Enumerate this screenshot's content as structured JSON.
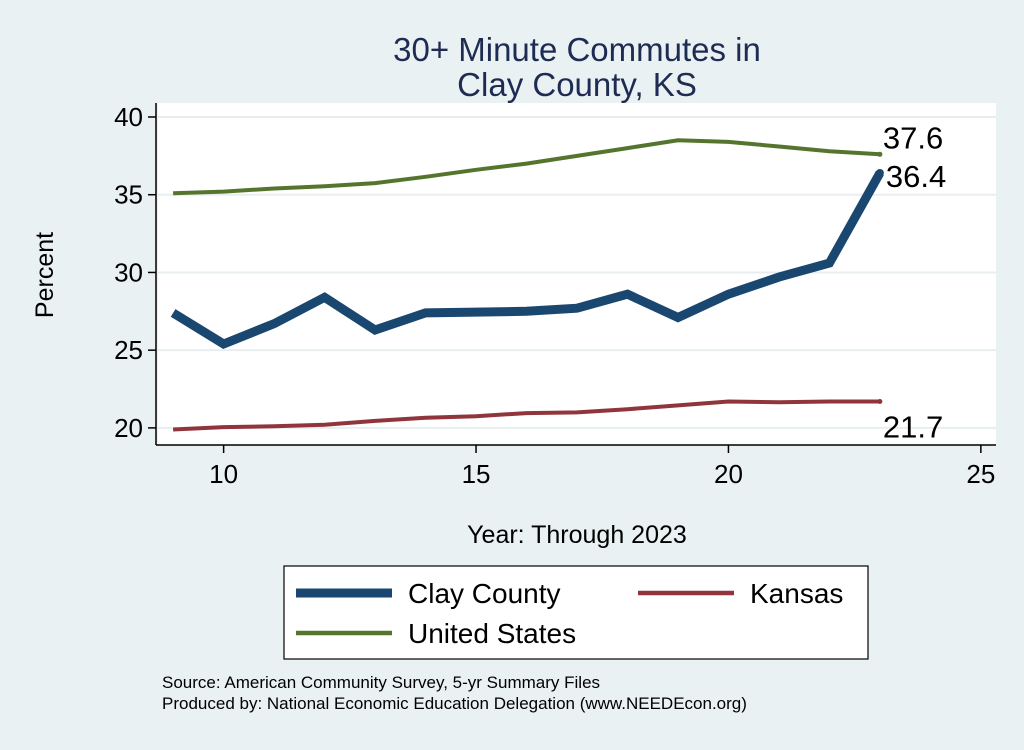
{
  "chart_data": {
    "type": "line",
    "title": [
      "30+ Minute Commutes in",
      "Clay County, KS"
    ],
    "xlabel": "Year: Through 2023",
    "ylabel": "Percent",
    "xlim": [
      8.7,
      25.3
    ],
    "ylim": [
      18.9,
      40.9
    ],
    "xticks": [
      10,
      15,
      20,
      25
    ],
    "yticks": [
      20,
      25,
      30,
      35,
      40
    ],
    "grid": "horizontal",
    "x": [
      9,
      10,
      11,
      12,
      13,
      14,
      15,
      16,
      17,
      18,
      19,
      20,
      21,
      22,
      23
    ],
    "series": [
      {
        "name": "Clay County",
        "color": "#1a476f",
        "values": [
          27.4,
          25.4,
          26.7,
          28.4,
          26.3,
          27.4,
          27.45,
          27.5,
          27.7,
          28.6,
          27.1,
          28.6,
          29.7,
          30.6,
          36.4
        ],
        "end_label": "36.4"
      },
      {
        "name": "Kansas",
        "color": "#90353b",
        "values": [
          19.9,
          20.05,
          20.1,
          20.2,
          20.45,
          20.65,
          20.75,
          20.95,
          21.0,
          21.2,
          21.45,
          21.7,
          21.65,
          21.7,
          21.7
        ],
        "end_label": "21.7"
      },
      {
        "name": "United States",
        "color": "#55752f",
        "values": [
          35.1,
          35.2,
          35.4,
          35.55,
          35.75,
          36.15,
          36.6,
          37.0,
          37.5,
          38.0,
          38.5,
          38.4,
          38.1,
          37.8,
          37.6
        ],
        "end_label": "37.6"
      }
    ],
    "legend": {
      "position": "bottom",
      "entries": [
        "Clay County",
        "Kansas",
        "United States"
      ]
    },
    "source_lines": [
      "Source: American Community Survey, 5-yr Summary Files",
      "Produced by: National Economic Education Delegation (www.NEEDEcon.org)"
    ]
  }
}
